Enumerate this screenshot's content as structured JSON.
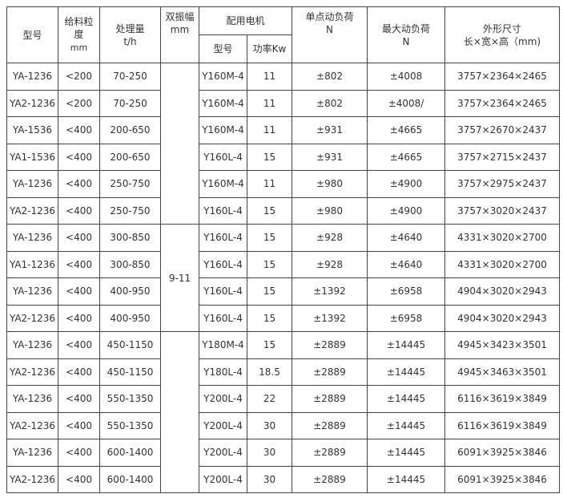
{
  "headers": {
    "model": "型号",
    "feed_size": [
      "给料粒",
      "度",
      "mm"
    ],
    "capacity": [
      "处理量",
      "t/h"
    ],
    "amplitude": [
      "双振幅",
      "mm"
    ],
    "motor": "配用电机",
    "motor_model": "型号",
    "motor_power": "功率Kw",
    "single_load": [
      "单点动负荷",
      "N"
    ],
    "max_load": [
      "最大动负荷",
      "N"
    ],
    "dimensions": [
      "外形尺寸",
      "长×宽×高（mm)"
    ]
  },
  "amplitude_value": "9-11",
  "rows": [
    [
      "YA-1236",
      "<200",
      "70-250",
      "Y160M-4",
      "11",
      "±802",
      "±4008",
      "3757×2364×2465"
    ],
    [
      "YA2-1236",
      "<200",
      "70-250",
      "Y160M-4",
      "11",
      "±802",
      "±4008/",
      "3757×2364×2465"
    ],
    [
      "YA-1536",
      "<400",
      "200-650",
      "Y160M-4",
      "11",
      "±931",
      "±4665",
      "3757×2670×2437"
    ],
    [
      "YA1-1536",
      "<400",
      "200-650",
      "Y160L-4",
      "15",
      "±931",
      "±4665",
      "3757×2715×2437"
    ],
    [
      "YA-1236",
      "<400",
      "250-750",
      "Y160M-4",
      "11",
      "±980",
      "±4900",
      "3757×2975×2437"
    ],
    [
      "YA2-1236",
      "<400",
      "250-750",
      "Y160L-4",
      "15",
      "±980",
      "±4900",
      "3757×3020×2437"
    ],
    [
      "YA-1236",
      "<400",
      "300-850",
      "Y160L-4",
      "15",
      "±928",
      "±4640",
      "4331×3020×2700"
    ],
    [
      "YA1-1236",
      "<400",
      "300-850",
      "Y160L-4",
      "15",
      "±928",
      "±4640",
      "4331×3020×2700"
    ],
    [
      "YA-1236",
      "<400",
      "400-950",
      "Y160L-4",
      "15",
      "±1392",
      "±6958",
      "4904×3020×2943"
    ],
    [
      "YA2-1236",
      "<400",
      "400-950",
      "Y160L-4",
      "15",
      "±1392",
      "±6958",
      "4904×3020×2943"
    ],
    [
      "YA-1236",
      "<400",
      "450-1150",
      "Y180M-4",
      "15",
      "±2889",
      "±14445",
      "4945×3423×3501"
    ],
    [
      "YA2-1236",
      "<400",
      "450-1150",
      "Y180L-4",
      "18.5",
      "±2889",
      "±14445",
      "4945×3463×3501"
    ],
    [
      "YA-1236",
      "<400",
      "550-1350",
      "Y200L-4",
      "22",
      "±2889",
      "±14445",
      "6116×3619×3849"
    ],
    [
      "YA2-1236",
      "<400",
      "550-1350",
      "Y200L-4",
      "30",
      "±2889",
      "±14445",
      "6116×3619×3849"
    ],
    [
      "YA-1236",
      "<400",
      "600-1400",
      "Y200L-4",
      "30",
      "±2889",
      "±14445",
      "6091×3925×3846"
    ],
    [
      "YA2-1236",
      "<400",
      "600-1400",
      "Y200L-4",
      "30",
      "±2889",
      "±14445",
      "6091×3925×3846"
    ]
  ]
}
